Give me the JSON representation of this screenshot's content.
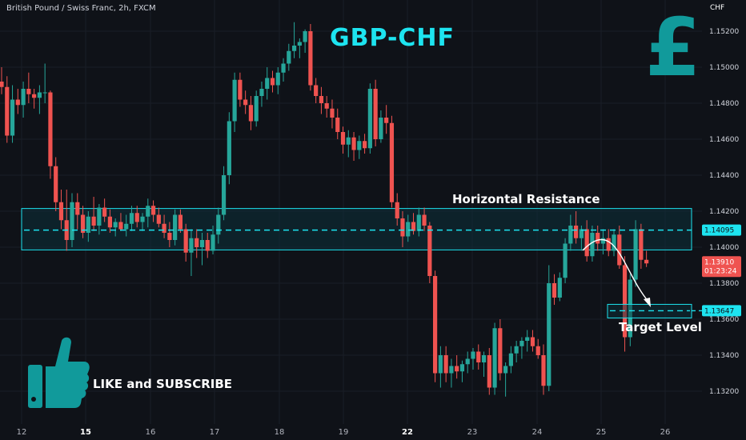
{
  "header": {
    "symbol": "British Pound / Swiss Franc, 2h, FXCM"
  },
  "currency_label": "CHF",
  "annotations": {
    "title": "GBP-CHF",
    "pound_symbol": "£",
    "resistance_label": "Horizontal Resistance",
    "target_label": "Target Level",
    "like_label": "LIKE and SUBSCRIBE",
    "thumb_icon": "thumbs-up-icon"
  },
  "price_tags": {
    "resistance": "1.14095",
    "current_price": "1.13910",
    "countdown": "01:23:24",
    "target": "1.13647"
  },
  "colors": {
    "background": "#0f1218",
    "up": "#26a69a",
    "down": "#ef5350",
    "accent": "#1de4f0",
    "zone_fill": "#0c2f3a"
  },
  "chart_data": {
    "type": "candlestick",
    "title": "GBP-CHF",
    "ylabel": "CHF",
    "ylim": [
      1.1308,
      1.153
    ],
    "y_ticks": [
      1.152,
      1.15,
      1.148,
      1.146,
      1.144,
      1.142,
      1.14,
      1.138,
      1.136,
      1.134,
      1.132
    ],
    "y_tick_labels": [
      "1.15200",
      "1.15000",
      "1.14800",
      "1.14600",
      "1.14400",
      "1.14200",
      "1.14000",
      "1.13800",
      "1.13600",
      "1.13400",
      "1.13200"
    ],
    "x_ticks": [
      "12",
      "15",
      "16",
      "17",
      "18",
      "19",
      "22",
      "23",
      "24",
      "25",
      "26"
    ],
    "x_tick_bold": [
      "15",
      "22"
    ],
    "resistance_level": 1.14095,
    "resistance_zone": [
      1.13985,
      1.14215
    ],
    "current_price": 1.1391,
    "target_level": 1.13647,
    "ohlc": [
      [
        1.1492,
        1.15,
        1.1485,
        1.1489
      ],
      [
        1.1489,
        1.1495,
        1.1458,
        1.1462
      ],
      [
        1.1462,
        1.149,
        1.1458,
        1.1482
      ],
      [
        1.1482,
        1.1488,
        1.1474,
        1.1479
      ],
      [
        1.1479,
        1.1492,
        1.1472,
        1.1488
      ],
      [
        1.1488,
        1.1497,
        1.148,
        1.1485
      ],
      [
        1.1485,
        1.1488,
        1.1477,
        1.1483
      ],
      [
        1.1483,
        1.149,
        1.1474,
        1.1486
      ],
      [
        1.1486,
        1.1502,
        1.148,
        1.1486
      ],
      [
        1.1486,
        1.1487,
        1.1438,
        1.1445
      ],
      [
        1.1445,
        1.145,
        1.142,
        1.1425
      ],
      [
        1.1425,
        1.1432,
        1.141,
        1.1415
      ],
      [
        1.1415,
        1.1432,
        1.1398,
        1.1404
      ],
      [
        1.1404,
        1.143,
        1.14,
        1.1425
      ],
      [
        1.1425,
        1.143,
        1.141,
        1.1418
      ],
      [
        1.1418,
        1.1423,
        1.1405,
        1.1408
      ],
      [
        1.1408,
        1.142,
        1.1403,
        1.1417
      ],
      [
        1.1417,
        1.1428,
        1.1409,
        1.1412
      ],
      [
        1.1412,
        1.1424,
        1.1407,
        1.1422
      ],
      [
        1.1422,
        1.1427,
        1.1414,
        1.1417
      ],
      [
        1.1417,
        1.1421,
        1.1408,
        1.1411
      ],
      [
        1.1411,
        1.1416,
        1.1406,
        1.1414
      ],
      [
        1.1414,
        1.1419,
        1.1409,
        1.141
      ],
      [
        1.141,
        1.1418,
        1.1406,
        1.1413
      ],
      [
        1.1413,
        1.1423,
        1.1409,
        1.1419
      ],
      [
        1.1419,
        1.1423,
        1.1411,
        1.1414
      ],
      [
        1.1414,
        1.1419,
        1.1409,
        1.1417
      ],
      [
        1.1417,
        1.1427,
        1.1411,
        1.1423
      ],
      [
        1.1423,
        1.1426,
        1.1414,
        1.1418
      ],
      [
        1.1418,
        1.1422,
        1.1411,
        1.1413
      ],
      [
        1.1413,
        1.1418,
        1.1405,
        1.1408
      ],
      [
        1.1408,
        1.1414,
        1.14,
        1.1404
      ],
      [
        1.1404,
        1.1421,
        1.1401,
        1.1418
      ],
      [
        1.1418,
        1.1421,
        1.1408,
        1.141
      ],
      [
        1.141,
        1.1413,
        1.1392,
        1.1397
      ],
      [
        1.1397,
        1.141,
        1.1384,
        1.1405
      ],
      [
        1.1405,
        1.141,
        1.1394,
        1.14
      ],
      [
        1.14,
        1.1408,
        1.139,
        1.1404
      ],
      [
        1.1404,
        1.1408,
        1.1394,
        1.1398
      ],
      [
        1.1398,
        1.1412,
        1.1396,
        1.1407
      ],
      [
        1.1407,
        1.1422,
        1.1402,
        1.1418
      ],
      [
        1.1418,
        1.1445,
        1.1415,
        1.144
      ],
      [
        1.144,
        1.1475,
        1.1435,
        1.147
      ],
      [
        1.147,
        1.1497,
        1.1464,
        1.1493
      ],
      [
        1.1493,
        1.1497,
        1.1478,
        1.1482
      ],
      [
        1.1482,
        1.1487,
        1.1474,
        1.1479
      ],
      [
        1.1479,
        1.1484,
        1.1465,
        1.147
      ],
      [
        1.147,
        1.1487,
        1.1467,
        1.1484
      ],
      [
        1.1484,
        1.1492,
        1.1478,
        1.1488
      ],
      [
        1.1488,
        1.15,
        1.1482,
        1.1494
      ],
      [
        1.1494,
        1.1498,
        1.1486,
        1.149
      ],
      [
        1.149,
        1.15,
        1.1485,
        1.1497
      ],
      [
        1.1497,
        1.1505,
        1.1492,
        1.1502
      ],
      [
        1.1502,
        1.1513,
        1.1498,
        1.1509
      ],
      [
        1.1509,
        1.1525,
        1.1505,
        1.1512
      ],
      [
        1.1512,
        1.1516,
        1.1505,
        1.1514
      ],
      [
        1.1514,
        1.1521,
        1.1508,
        1.152
      ],
      [
        1.152,
        1.1524,
        1.1487,
        1.149
      ],
      [
        1.149,
        1.1494,
        1.148,
        1.1484
      ],
      [
        1.1484,
        1.1489,
        1.1474,
        1.148
      ],
      [
        1.148,
        1.1484,
        1.1472,
        1.1477
      ],
      [
        1.1477,
        1.1482,
        1.1466,
        1.1472
      ],
      [
        1.1472,
        1.1477,
        1.146,
        1.1464
      ],
      [
        1.1464,
        1.1467,
        1.1452,
        1.1457
      ],
      [
        1.1457,
        1.1465,
        1.145,
        1.1461
      ],
      [
        1.1461,
        1.1464,
        1.1448,
        1.1454
      ],
      [
        1.1454,
        1.1462,
        1.1449,
        1.1459
      ],
      [
        1.1459,
        1.1463,
        1.1452,
        1.1455
      ],
      [
        1.1455,
        1.1491,
        1.1452,
        1.1488
      ],
      [
        1.1488,
        1.1493,
        1.1456,
        1.146
      ],
      [
        1.146,
        1.1476,
        1.1458,
        1.1472
      ],
      [
        1.1472,
        1.1479,
        1.1463,
        1.1469
      ],
      [
        1.1469,
        1.1473,
        1.1422,
        1.1425
      ],
      [
        1.1425,
        1.143,
        1.1412,
        1.1416
      ],
      [
        1.1416,
        1.142,
        1.14,
        1.1406
      ],
      [
        1.1406,
        1.1418,
        1.1403,
        1.1414
      ],
      [
        1.1414,
        1.1419,
        1.1407,
        1.1409
      ],
      [
        1.1409,
        1.1422,
        1.1406,
        1.1418
      ],
      [
        1.1418,
        1.1422,
        1.1409,
        1.1412
      ],
      [
        1.1412,
        1.1414,
        1.138,
        1.1384
      ],
      [
        1.1384,
        1.1387,
        1.1325,
        1.133
      ],
      [
        1.133,
        1.1345,
        1.1322,
        1.134
      ],
      [
        1.134,
        1.1345,
        1.1325,
        1.133
      ],
      [
        1.133,
        1.1338,
        1.1322,
        1.1334
      ],
      [
        1.1334,
        1.134,
        1.1327,
        1.1331
      ],
      [
        1.1331,
        1.1337,
        1.1325,
        1.1335
      ],
      [
        1.1335,
        1.1342,
        1.133,
        1.1338
      ],
      [
        1.1338,
        1.1344,
        1.1332,
        1.1342
      ],
      [
        1.1342,
        1.1346,
        1.1332,
        1.1336
      ],
      [
        1.1336,
        1.1342,
        1.1328,
        1.134
      ],
      [
        1.134,
        1.1344,
        1.1318,
        1.1322
      ],
      [
        1.1322,
        1.1358,
        1.1318,
        1.1355
      ],
      [
        1.1355,
        1.136,
        1.1326,
        1.133
      ],
      [
        1.133,
        1.1336,
        1.1317,
        1.1334
      ],
      [
        1.1334,
        1.1345,
        1.133,
        1.1341
      ],
      [
        1.1341,
        1.1348,
        1.1336,
        1.1345
      ],
      [
        1.1345,
        1.135,
        1.1338,
        1.1348
      ],
      [
        1.1348,
        1.1354,
        1.1342,
        1.135
      ],
      [
        1.135,
        1.1354,
        1.1342,
        1.1345
      ],
      [
        1.1345,
        1.1349,
        1.1338,
        1.134
      ],
      [
        1.134,
        1.1346,
        1.1318,
        1.1323
      ],
      [
        1.1323,
        1.139,
        1.132,
        1.138
      ],
      [
        1.138,
        1.1385,
        1.1368,
        1.1372
      ],
      [
        1.1372,
        1.1386,
        1.137,
        1.1383
      ],
      [
        1.1383,
        1.1405,
        1.138,
        1.1402
      ],
      [
        1.1402,
        1.1418,
        1.1398,
        1.1412
      ],
      [
        1.1412,
        1.142,
        1.1402,
        1.1405
      ],
      [
        1.1405,
        1.1412,
        1.1398,
        1.141
      ],
      [
        1.141,
        1.1415,
        1.1392,
        1.1395
      ],
      [
        1.1395,
        1.1412,
        1.1392,
        1.1408
      ],
      [
        1.1408,
        1.1412,
        1.1398,
        1.1402
      ],
      [
        1.1402,
        1.141,
        1.1396,
        1.1405
      ],
      [
        1.1405,
        1.141,
        1.1395,
        1.1398
      ],
      [
        1.1398,
        1.141,
        1.1395,
        1.1407
      ],
      [
        1.1407,
        1.1412,
        1.1388,
        1.139
      ],
      [
        1.139,
        1.1395,
        1.1342,
        1.135
      ],
      [
        1.135,
        1.1385,
        1.1345,
        1.1382
      ],
      [
        1.1382,
        1.1415,
        1.1378,
        1.141
      ],
      [
        1.141,
        1.1413,
        1.1388,
        1.1393
      ],
      [
        1.1393,
        1.1398,
        1.1389,
        1.1391
      ]
    ]
  }
}
